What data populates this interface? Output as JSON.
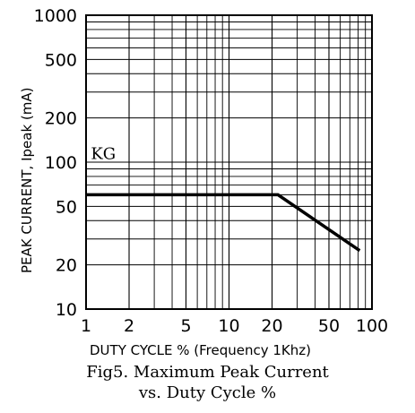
{
  "chart_data": {
    "type": "line",
    "title": "Fig5. Maximum Peak Current",
    "subtitle": "vs. Duty Cycle %",
    "xlabel": "DUTY CYCLE % (Frequency 1Khz)",
    "ylabel": "PEAK CURRENT, Ipeak (mA)",
    "xscale": "log",
    "yscale": "log",
    "xlim": [
      1,
      100
    ],
    "ylim": [
      10,
      1000
    ],
    "grid": true,
    "x_ticks": [
      1,
      2,
      5,
      10,
      20,
      50,
      100
    ],
    "x_tick_labels": [
      "1",
      "2",
      "5",
      "10",
      "20",
      "50",
      "100"
    ],
    "y_ticks": [
      10,
      20,
      50,
      100,
      200,
      500,
      1000
    ],
    "y_tick_labels": [
      "10",
      "20",
      "50",
      "100",
      "200",
      "500",
      "1000"
    ],
    "series": [
      {
        "x": [
          1,
          22,
          82
        ],
        "y": [
          60,
          60,
          25
        ]
      }
    ],
    "annotations": [
      {
        "text": "KG",
        "x": 1.08,
        "y": 105
      }
    ]
  }
}
